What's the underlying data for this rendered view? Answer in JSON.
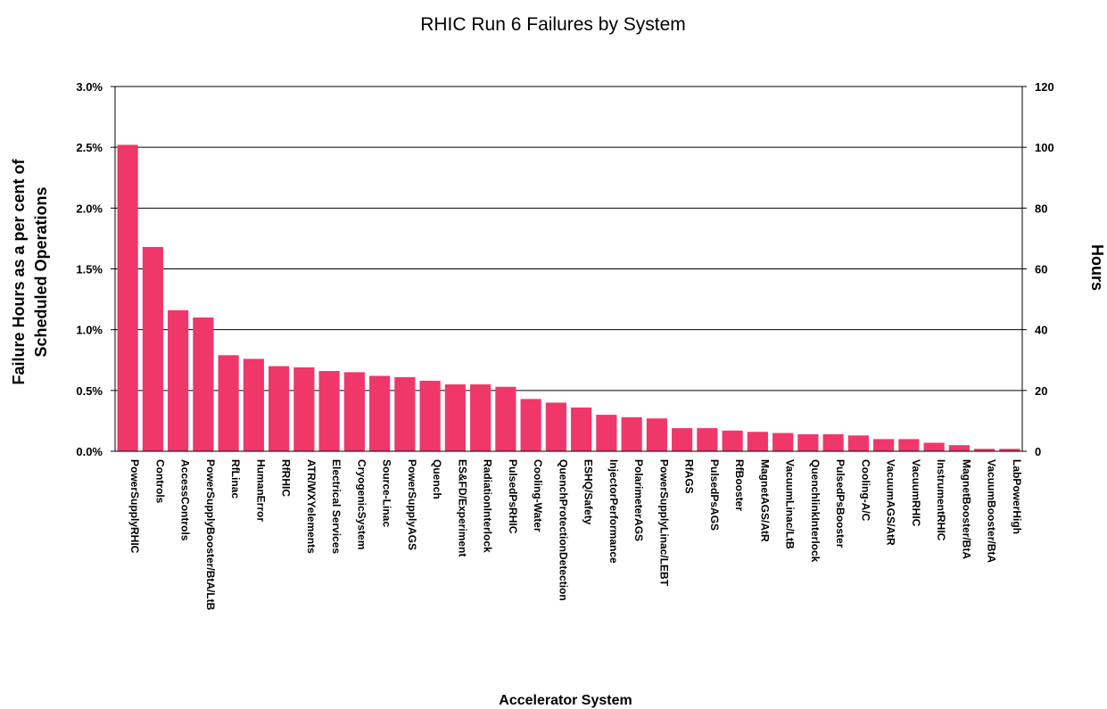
{
  "chart_data": {
    "type": "bar",
    "title": "RHIC Run 6 Failures by System",
    "xlabel": "Accelerator System",
    "ylabel_line1": "Failure Hours as a per cent of",
    "ylabel_line2": "Scheduled Operations",
    "y2label": "Hours",
    "ylim": [
      0,
      3.0
    ],
    "y2lim": [
      0,
      120
    ],
    "yticks": [
      "0.0%",
      "0.5%",
      "1.0%",
      "1.5%",
      "2.0%",
      "2.5%",
      "3.0%"
    ],
    "y2ticks": [
      "0",
      "20",
      "40",
      "60",
      "80",
      "100",
      "120"
    ],
    "bar_color": "#f0376a",
    "grid": true,
    "legend": "none",
    "categories": [
      "PowerSupplyRHIC",
      "Controls",
      "AccessControls",
      "PowerSupplyBooster/BtA/LtB",
      "RfLinac",
      "HumanError",
      "RfRHIC",
      "ATR/WXYelements",
      "Electrical Services",
      "CryogenicSystem",
      "Source-Linac",
      "PowerSupplyAGS",
      "Quench",
      "ES&FD/Experiment",
      "RadiationInterlock",
      "PulsedPsRHIC",
      "Cooling-Water",
      "QuenchProtectionDetection",
      "ESHQ/Safety",
      "InjectorPerformance",
      "PolarimeterAGS",
      "PowerSupplyLinac/LEBT",
      "RfAGS",
      "PulsedPsAGS",
      "RfBooster",
      "MagnetAGS/AtR",
      "VacuumLinac/LtB",
      "QuenchlinkInterlock",
      "PulsedPsBooster",
      "Cooling-A/C",
      "VacuumAGS/AtR",
      "VacuumRHIC",
      "InstrumentRHIC",
      "MagnetBooster/BtA",
      "VacuumBooster/BtA",
      "LabPowerHigh"
    ],
    "values": [
      2.52,
      1.68,
      1.16,
      1.1,
      0.79,
      0.76,
      0.7,
      0.69,
      0.66,
      0.65,
      0.62,
      0.61,
      0.58,
      0.55,
      0.55,
      0.53,
      0.43,
      0.4,
      0.36,
      0.3,
      0.28,
      0.27,
      0.19,
      0.19,
      0.17,
      0.16,
      0.15,
      0.14,
      0.14,
      0.13,
      0.1,
      0.1,
      0.07,
      0.05,
      0.02,
      0.02
    ]
  }
}
